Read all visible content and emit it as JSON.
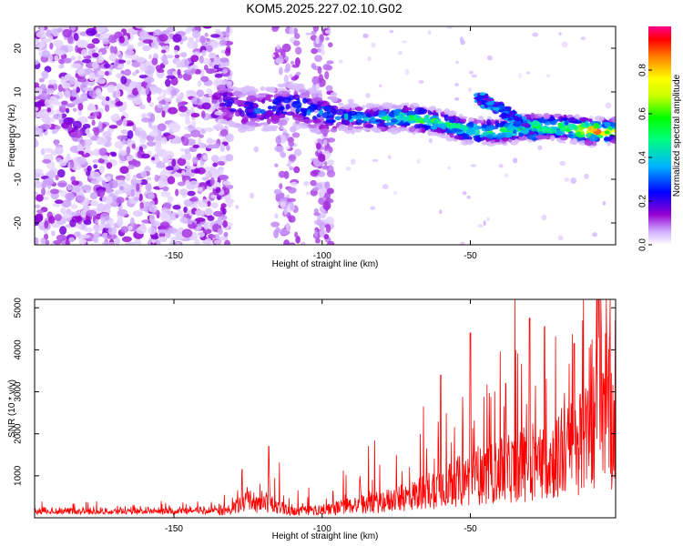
{
  "chart_data": [
    {
      "type": "heatmap",
      "title": "KOM5.2025.227.02.10.G02",
      "xlabel": "Height of straight line (km)",
      "ylabel": "Frequency (Hz)",
      "xlim": [
        -197,
        -1
      ],
      "ylim": [
        -25,
        25
      ],
      "xticks": [
        -150,
        -100,
        -50
      ],
      "yticks": [
        -20,
        -10,
        0,
        10,
        20
      ],
      "colorbar": {
        "label": "Normalized spectral amplitude",
        "range": [
          0,
          1
        ],
        "ticks": [
          0.0,
          0.2,
          0.4,
          0.6,
          0.8
        ],
        "colors": [
          "#ffffff",
          "#c8a0ff",
          "#9400d3",
          "#0000ff",
          "#00c8ff",
          "#00ff00",
          "#ffff00",
          "#ff8000",
          "#ff0000",
          "#ff0090"
        ]
      },
      "ridge": {
        "description_points_km_hz": [
          [
            -133,
            8
          ],
          [
            -128,
            6
          ],
          [
            -120,
            6
          ],
          [
            -110,
            7
          ],
          [
            -100,
            5
          ],
          [
            -90,
            4
          ],
          [
            -80,
            4
          ],
          [
            -70,
            4
          ],
          [
            -60,
            3
          ],
          [
            -50,
            1
          ],
          [
            -40,
            1
          ],
          [
            -30,
            2
          ],
          [
            -20,
            2
          ],
          [
            -10,
            1
          ],
          [
            -2,
            1
          ]
        ],
        "secondary_branch_km_hz": [
          [
            -48,
            9
          ],
          [
            -40,
            6
          ],
          [
            -33,
            3
          ],
          [
            -28,
            0
          ]
        ]
      }
    },
    {
      "type": "line",
      "xlabel": "Height of straight line (km)",
      "ylabel": "SNR (10 * v/v)",
      "xlim": [
        -197,
        -1
      ],
      "ylim": [
        0,
        5200
      ],
      "xticks": [
        -150,
        -100,
        -50
      ],
      "yticks": [
        1000,
        2000,
        3000,
        4000,
        5000
      ],
      "color": "#ff0000",
      "envelope_km_snr": [
        [
          -197,
          150
        ],
        [
          -180,
          150
        ],
        [
          -160,
          160
        ],
        [
          -140,
          180
        ],
        [
          -131,
          220
        ],
        [
          -125,
          450
        ],
        [
          -118,
          450
        ],
        [
          -110,
          180
        ],
        [
          -100,
          220
        ],
        [
          -90,
          350
        ],
        [
          -80,
          450
        ],
        [
          -70,
          600
        ],
        [
          -60,
          900
        ],
        [
          -50,
          1100
        ],
        [
          -40,
          1300
        ],
        [
          -30,
          1500
        ],
        [
          -20,
          1700
        ],
        [
          -10,
          2300
        ],
        [
          -5,
          3500
        ],
        [
          -2,
          2500
        ]
      ],
      "peaks_km_snr": [
        [
          -118,
          1700
        ],
        [
          -127,
          1150
        ],
        [
          -60,
          3400
        ],
        [
          -50,
          4400
        ],
        [
          -38,
          3200
        ],
        [
          -30,
          4750
        ],
        [
          -25,
          4550
        ],
        [
          -15,
          4150
        ],
        [
          -7,
          5200
        ],
        [
          -3,
          4300
        ],
        [
          -1,
          4700
        ]
      ]
    }
  ]
}
